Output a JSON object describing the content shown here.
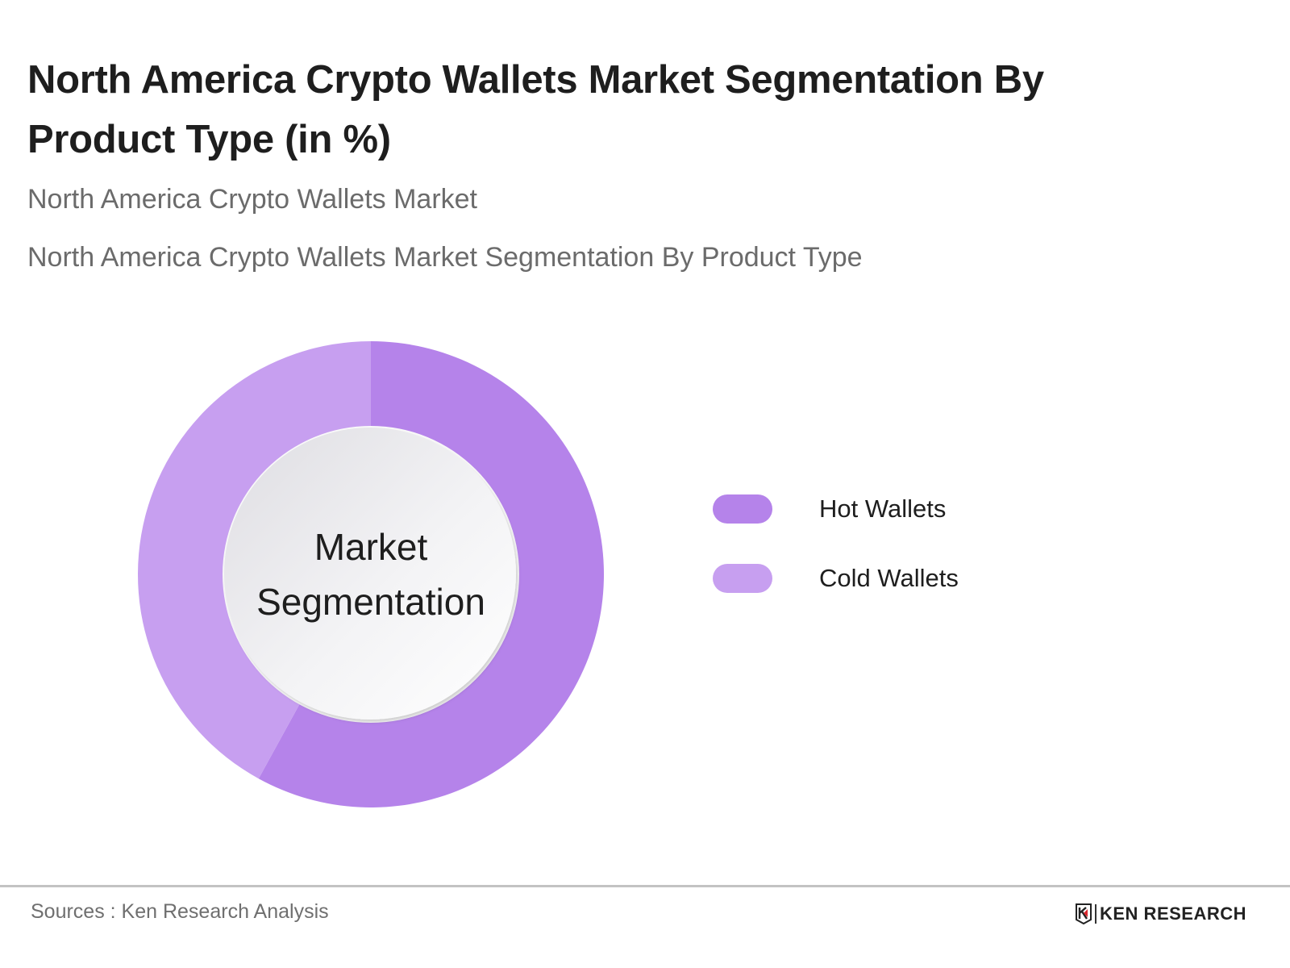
{
  "header": {
    "title": "North America Crypto Wallets Market Segmentation By Product Type (in %)",
    "subtitle_1": "North America Crypto Wallets Market",
    "subtitle_2": "North America Crypto Wallets Market Segmentation By Product Type"
  },
  "chart": {
    "center_label_line1": "Market",
    "center_label_line2": "Segmentation"
  },
  "legend": {
    "items": [
      {
        "label": "Hot Wallets",
        "color": "#b583ea"
      },
      {
        "label": "Cold Wallets",
        "color": "#c79ff0"
      }
    ]
  },
  "footer": {
    "source": "Sources : Ken Research Analysis",
    "logo_text": "KEN RESEARCH"
  },
  "chart_data": {
    "type": "pie",
    "variant": "donut",
    "title": "North America Crypto Wallets Market Segmentation By Product Type (in %)",
    "subtitle": "North America Crypto Wallets Market",
    "categories": [
      "Hot Wallets",
      "Cold Wallets"
    ],
    "values": [
      58,
      42
    ],
    "colors": [
      "#b583ea",
      "#c79ff0"
    ],
    "center_label": "Market Segmentation",
    "legend_position": "right",
    "data_labels_shown": false,
    "source": "Sources : Ken Research Analysis"
  }
}
